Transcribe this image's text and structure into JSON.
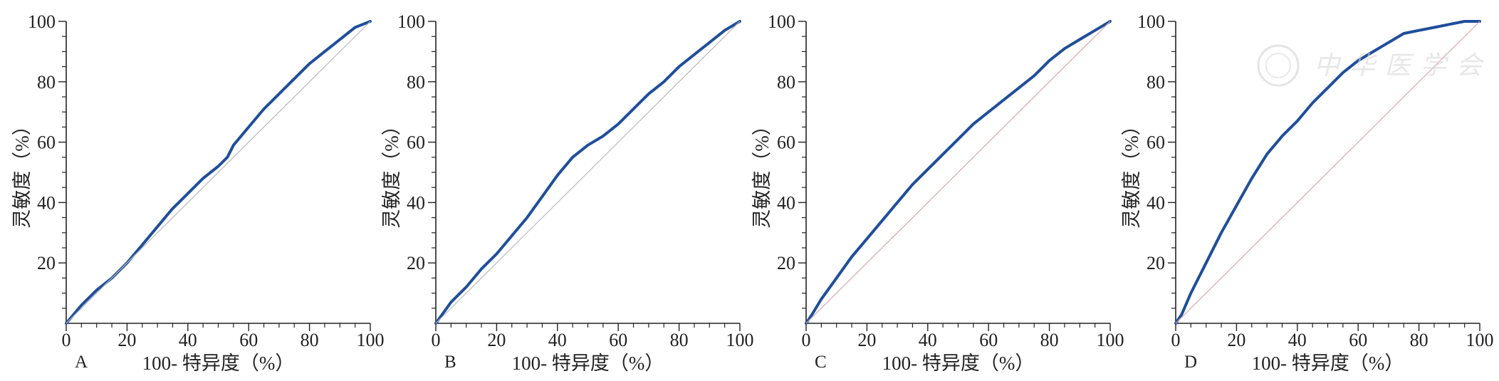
{
  "watermark": {
    "text": "中华医学会"
  },
  "colors": {
    "roc": "#1f4e9a",
    "reference": "#d9a7ad",
    "reference_grey": "#b9b9b9",
    "axis": "#222222"
  },
  "chart_data": [
    {
      "type": "line",
      "panel": "A",
      "xlabel": "100- 特异度（%）",
      "ylabel": "灵敏度（%）",
      "xlim": [
        0,
        100
      ],
      "ylim": [
        0,
        100
      ],
      "x_ticks": [
        "0",
        "20",
        "40",
        "60",
        "80",
        "100"
      ],
      "y_ticks": [
        "20",
        "40",
        "60",
        "80",
        "100"
      ],
      "grid": false,
      "series": [
        {
          "role": "roc",
          "x": [
            0,
            5,
            10,
            15,
            20,
            25,
            30,
            35,
            40,
            45,
            50,
            53,
            55,
            60,
            65,
            70,
            75,
            80,
            85,
            90,
            95,
            100
          ],
          "y": [
            0,
            6,
            11,
            15,
            20,
            26,
            32,
            38,
            43,
            48,
            52,
            55,
            59,
            65,
            71,
            76,
            81,
            86,
            90,
            94,
            98,
            100
          ]
        },
        {
          "role": "reference",
          "x": [
            0,
            100
          ],
          "y": [
            0,
            100
          ]
        }
      ]
    },
    {
      "type": "line",
      "panel": "B",
      "xlabel": "100- 特异度（%）",
      "ylabel": "灵敏度（%）",
      "xlim": [
        0,
        100
      ],
      "ylim": [
        0,
        100
      ],
      "x_ticks": [
        "0",
        "20",
        "40",
        "60",
        "80",
        "100"
      ],
      "y_ticks": [
        "20",
        "40",
        "60",
        "80",
        "100"
      ],
      "grid": false,
      "series": [
        {
          "role": "roc",
          "x": [
            0,
            5,
            10,
            15,
            20,
            25,
            30,
            35,
            40,
            45,
            50,
            55,
            60,
            65,
            70,
            75,
            80,
            85,
            90,
            95,
            100
          ],
          "y": [
            0,
            7,
            12,
            18,
            23,
            29,
            35,
            42,
            49,
            55,
            59,
            62,
            66,
            71,
            76,
            80,
            85,
            89,
            93,
            97,
            100
          ]
        },
        {
          "role": "reference",
          "x": [
            0,
            100
          ],
          "y": [
            0,
            100
          ]
        }
      ]
    },
    {
      "type": "line",
      "panel": "C",
      "xlabel": "100- 特异度（%）",
      "ylabel": "灵敏度（%）",
      "xlim": [
        0,
        100
      ],
      "ylim": [
        0,
        100
      ],
      "x_ticks": [
        "0",
        "20",
        "40",
        "60",
        "80",
        "100"
      ],
      "y_ticks": [
        "20",
        "40",
        "60",
        "80",
        "100"
      ],
      "grid": false,
      "series": [
        {
          "role": "roc",
          "x": [
            0,
            2,
            5,
            10,
            15,
            20,
            25,
            30,
            35,
            40,
            45,
            50,
            55,
            60,
            65,
            70,
            75,
            80,
            85,
            90,
            95,
            100
          ],
          "y": [
            0,
            3,
            8,
            15,
            22,
            28,
            34,
            40,
            46,
            51,
            56,
            61,
            66,
            70,
            74,
            78,
            82,
            87,
            91,
            94,
            97,
            100
          ]
        },
        {
          "role": "reference",
          "x": [
            0,
            100
          ],
          "y": [
            0,
            100
          ]
        }
      ]
    },
    {
      "type": "line",
      "panel": "D",
      "xlabel": "100- 特异度（%）",
      "ylabel": "灵敏度（%）",
      "xlim": [
        0,
        100
      ],
      "ylim": [
        0,
        100
      ],
      "x_ticks": [
        "0",
        "20",
        "40",
        "60",
        "80",
        "100"
      ],
      "y_ticks": [
        "20",
        "40",
        "60",
        "80",
        "100"
      ],
      "grid": false,
      "series": [
        {
          "role": "roc",
          "x": [
            0,
            2,
            5,
            10,
            15,
            20,
            25,
            30,
            35,
            40,
            45,
            50,
            55,
            60,
            65,
            70,
            75,
            80,
            85,
            90,
            95,
            100
          ],
          "y": [
            0,
            3,
            10,
            20,
            30,
            39,
            48,
            56,
            62,
            67,
            73,
            78,
            83,
            87,
            90,
            93,
            96,
            97,
            98,
            99,
            100,
            100
          ]
        },
        {
          "role": "reference",
          "x": [
            0,
            100
          ],
          "y": [
            0,
            100
          ]
        }
      ]
    }
  ]
}
